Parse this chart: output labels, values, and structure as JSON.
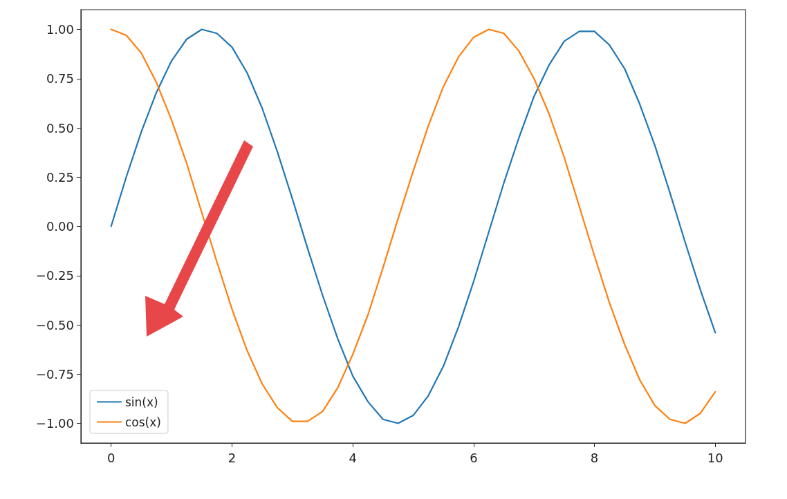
{
  "chart_data": {
    "type": "line",
    "x": [
      0,
      0.25,
      0.5,
      0.75,
      1,
      1.25,
      1.5,
      1.75,
      2,
      2.25,
      2.5,
      2.75,
      3,
      3.25,
      3.5,
      3.75,
      4,
      4.25,
      4.5,
      4.75,
      5,
      5.25,
      5.5,
      5.75,
      6,
      6.25,
      6.5,
      6.75,
      7,
      7.25,
      7.5,
      7.75,
      8,
      8.25,
      8.5,
      8.75,
      9,
      9.25,
      9.5,
      9.75,
      10
    ],
    "series": [
      {
        "name": "sin(x)",
        "color": "#1f77b4",
        "values": [
          0,
          0.25,
          0.48,
          0.68,
          0.84,
          0.95,
          1.0,
          0.98,
          0.91,
          0.78,
          0.6,
          0.38,
          0.14,
          -0.11,
          -0.35,
          -0.57,
          -0.76,
          -0.89,
          -0.98,
          -1.0,
          -0.96,
          -0.86,
          -0.71,
          -0.51,
          -0.28,
          -0.03,
          0.22,
          0.45,
          0.66,
          0.82,
          0.94,
          0.99,
          0.99,
          0.92,
          0.8,
          0.62,
          0.41,
          0.17,
          -0.08,
          -0.32,
          -0.54
        ]
      },
      {
        "name": "cos(x)",
        "color": "#ff7f0e",
        "values": [
          1,
          0.97,
          0.88,
          0.73,
          0.54,
          0.32,
          0.07,
          -0.18,
          -0.42,
          -0.63,
          -0.8,
          -0.92,
          -0.99,
          -0.99,
          -0.94,
          -0.82,
          -0.65,
          -0.45,
          -0.21,
          0.04,
          0.28,
          0.51,
          0.71,
          0.86,
          0.96,
          1.0,
          0.98,
          0.89,
          0.75,
          0.57,
          0.35,
          0.1,
          -0.15,
          -0.39,
          -0.6,
          -0.78,
          -0.91,
          -0.98,
          -1.0,
          -0.95,
          -0.84
        ]
      }
    ],
    "xlim": [
      -0.5,
      10.5
    ],
    "xticks": [
      0,
      2,
      4,
      6,
      8,
      10
    ],
    "ylim": [
      -1.1,
      1.1
    ],
    "yticks": [
      {
        "value": -1,
        "label": "−1.00"
      },
      {
        "value": -0.75,
        "label": "−0.75"
      },
      {
        "value": -0.5,
        "label": "−0.50"
      },
      {
        "value": -0.25,
        "label": "−0.25"
      },
      {
        "value": 0,
        "label": "0.00"
      },
      {
        "value": 0.25,
        "label": "0.25"
      },
      {
        "value": 0.5,
        "label": "0.50"
      },
      {
        "value": 0.75,
        "label": "0.75"
      },
      {
        "value": 1,
        "label": "1.00"
      }
    ],
    "legend": "bottom left",
    "marker": "none",
    "line_style": "solid"
  }
}
